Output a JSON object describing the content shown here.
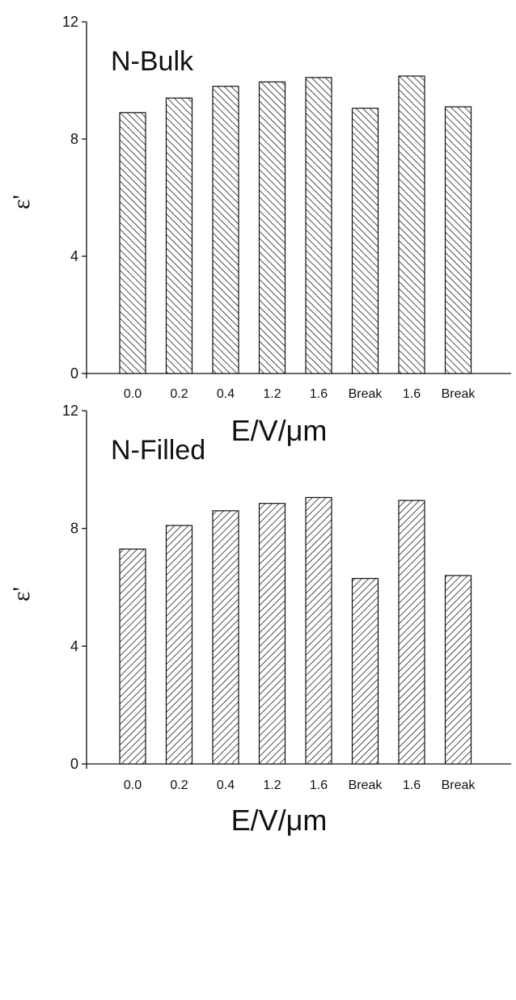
{
  "chart_data": [
    {
      "type": "bar",
      "title": "N-Bulk",
      "xlabel": "E/V/μm",
      "ylabel": "ε'",
      "ylim": [
        0,
        12
      ],
      "yticks": [
        0,
        4,
        8,
        12
      ],
      "categories": [
        "0.0",
        "0.2",
        "0.4",
        "1.2",
        "1.6",
        "Break",
        "1.6",
        "Break"
      ],
      "values": [
        8.9,
        9.4,
        9.8,
        9.95,
        10.1,
        9.05,
        10.15,
        9.1
      ],
      "hatch": "backslash"
    },
    {
      "type": "bar",
      "title": "N-Filled",
      "xlabel": "E/V/μm",
      "ylabel": "ε'",
      "ylim": [
        0,
        12
      ],
      "yticks": [
        0,
        4,
        8,
        12
      ],
      "categories": [
        "0.0",
        "0.2",
        "0.4",
        "1.2",
        "1.6",
        "Break",
        "1.6",
        "Break"
      ],
      "values": [
        7.3,
        8.1,
        8.6,
        8.85,
        9.05,
        6.3,
        8.95,
        6.4
      ],
      "hatch": "slash"
    }
  ]
}
